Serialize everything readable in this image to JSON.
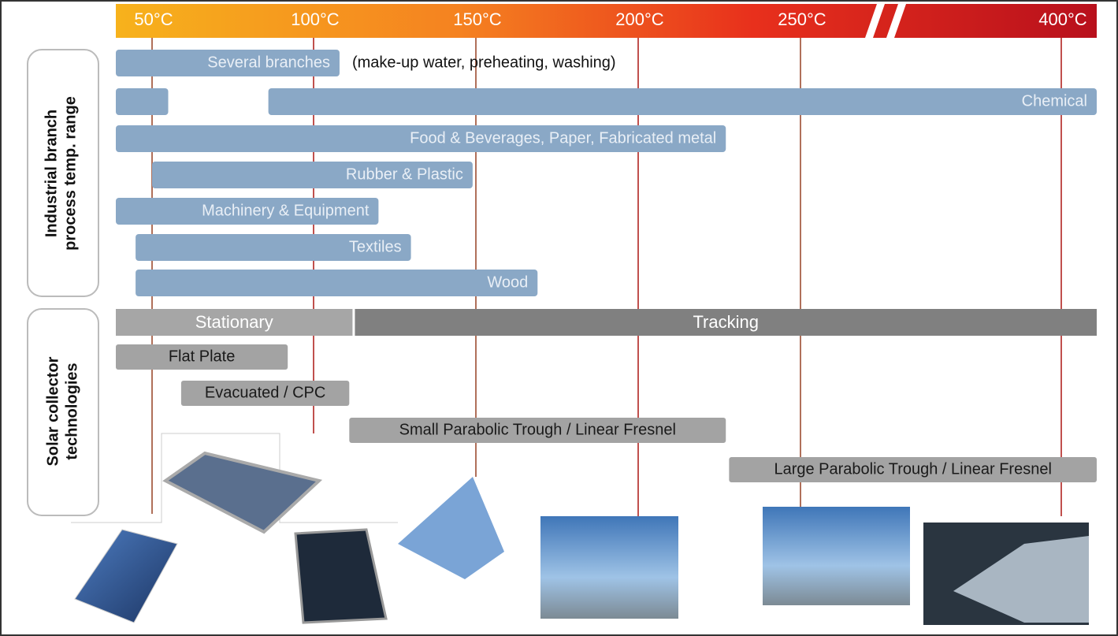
{
  "axis": {
    "xlim": [
      39,
      420
    ],
    "ticks": [
      {
        "value": 50,
        "label": "50°C"
      },
      {
        "value": 100,
        "label": "100°C"
      },
      {
        "value": 150,
        "label": "150°C"
      },
      {
        "value": 200,
        "label": "200°C"
      },
      {
        "value": 250,
        "label": "250°C"
      },
      {
        "value": 400,
        "label": "400°C"
      }
    ]
  },
  "industry": {
    "label": [
      "Industrial  branch",
      "process temp. range"
    ],
    "bars": [
      {
        "label": "Several branches",
        "note": "(make-up water, preheating, washing)",
        "ranges": [
          [
            39,
            108
          ]
        ]
      },
      {
        "label": "Chemical",
        "ranges": [
          [
            39,
            55
          ],
          [
            86,
            420
          ]
        ]
      },
      {
        "label": "Food & Beverages, Paper, Fabricated metal",
        "ranges": [
          [
            39,
            227
          ]
        ]
      },
      {
        "label": "Rubber & Plastic",
        "ranges": [
          [
            50,
            149
          ]
        ]
      },
      {
        "label": "Machinery & Equipment",
        "ranges": [
          [
            39,
            120
          ]
        ]
      },
      {
        "label": "Textiles",
        "ranges": [
          [
            45,
            130
          ]
        ]
      },
      {
        "label": "Wood",
        "ranges": [
          [
            45,
            169
          ]
        ]
      }
    ]
  },
  "collectors": {
    "label": [
      "Solar collector",
      "technologies"
    ],
    "modes": [
      {
        "label": "Stationary",
        "range": [
          39,
          112
        ]
      },
      {
        "label": "Tracking",
        "range": [
          112,
          420
        ]
      }
    ],
    "bars": [
      {
        "label": "Flat Plate",
        "range": [
          39,
          92
        ]
      },
      {
        "label": "Evacuated / CPC",
        "range": [
          59,
          111
        ]
      },
      {
        "label": "Small Parabolic Trough  / Linear Fresnel",
        "range": [
          111,
          227
        ]
      },
      {
        "label": "Large Parabolic Trough / Linear Fresnel",
        "range": [
          228,
          420
        ]
      }
    ]
  }
}
